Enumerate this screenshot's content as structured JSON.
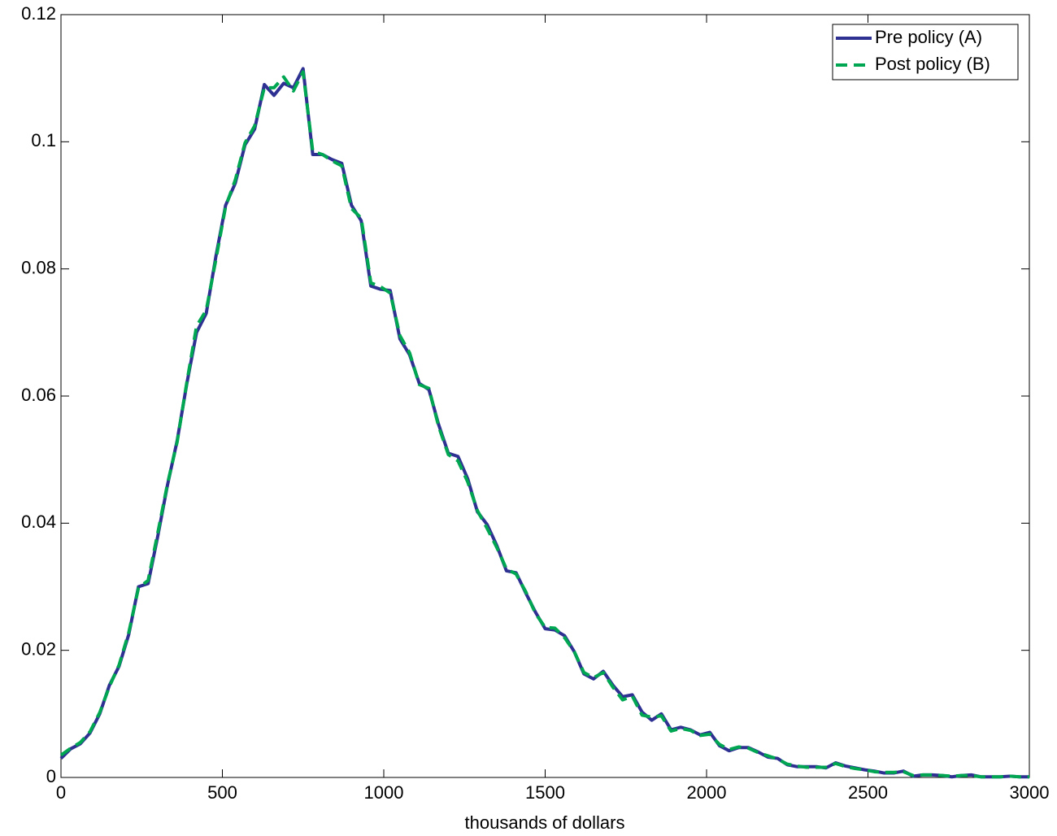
{
  "chart_data": {
    "type": "line",
    "xlabel": "thousands of dollars",
    "x": [
      0,
      30,
      60,
      90,
      120,
      150,
      180,
      210,
      240,
      270,
      300,
      330,
      360,
      390,
      420,
      450,
      480,
      510,
      540,
      570,
      600,
      630,
      660,
      690,
      720,
      750,
      780,
      810,
      840,
      870,
      900,
      930,
      960,
      990,
      1020,
      1050,
      1080,
      1110,
      1140,
      1170,
      1200,
      1230,
      1260,
      1290,
      1320,
      1350,
      1380,
      1410,
      1440,
      1470,
      1500,
      1530,
      1560,
      1590,
      1620,
      1650,
      1680,
      1710,
      1740,
      1770,
      1800,
      1830,
      1860,
      1890,
      1920,
      1950,
      1980,
      2010,
      2040,
      2070,
      2100,
      2130,
      2160,
      2190,
      2220,
      2250,
      2280,
      2310,
      2340,
      2370,
      2400,
      2430,
      2460,
      2490,
      2520,
      2550,
      2580,
      2610,
      2640,
      2670,
      2700,
      2730,
      2760,
      2790,
      2820,
      2850,
      2880,
      2910,
      2940,
      2970,
      3000
    ],
    "series": [
      {
        "name": "Pre policy (A)",
        "color": "#2e3192",
        "dash": "solid",
        "values": [
          0.003,
          0.0045,
          0.0053,
          0.007,
          0.01,
          0.0145,
          0.0175,
          0.0225,
          0.03,
          0.0305,
          0.038,
          0.046,
          0.053,
          0.062,
          0.07,
          0.073,
          0.082,
          0.09,
          0.0935,
          0.0995,
          0.102,
          0.109,
          0.1073,
          0.1092,
          0.1085,
          0.1115,
          0.098,
          0.098,
          0.0972,
          0.0966,
          0.09,
          0.0876,
          0.0773,
          0.0768,
          0.0766,
          0.069,
          0.0665,
          0.062,
          0.061,
          0.0555,
          0.051,
          0.0505,
          0.047,
          0.0418,
          0.0398,
          0.0365,
          0.0325,
          0.0322,
          0.029,
          0.026,
          0.0234,
          0.0232,
          0.0223,
          0.0198,
          0.0163,
          0.0155,
          0.0167,
          0.0145,
          0.0127,
          0.013,
          0.0103,
          0.009,
          0.01,
          0.0075,
          0.0079,
          0.0075,
          0.0067,
          0.0071,
          0.005,
          0.0042,
          0.0047,
          0.0047,
          0.004,
          0.0032,
          0.003,
          0.002,
          0.0017,
          0.0017,
          0.0017,
          0.0015,
          0.0023,
          0.0018,
          0.0015,
          0.0012,
          0.001,
          0.0007,
          0.0007,
          0.001,
          0.0002,
          0.0004,
          0.0004,
          0.0003,
          0.0001,
          0.0003,
          0.0004,
          0.0001,
          0.0001,
          0.0001,
          0.0002,
          0.0001,
          0.0001
        ]
      },
      {
        "name": "Post policy (B)",
        "color": "#00a651",
        "dash": "dashed",
        "values": [
          0.0035,
          0.0046,
          0.0055,
          0.0072,
          0.0102,
          0.0143,
          0.0177,
          0.0228,
          0.0298,
          0.031,
          0.0385,
          0.0462,
          0.0528,
          0.0622,
          0.071,
          0.0735,
          0.0815,
          0.0898,
          0.094,
          0.0998,
          0.1025,
          0.1085,
          0.1085,
          0.1102,
          0.108,
          0.111,
          0.0985,
          0.098,
          0.097,
          0.0962,
          0.0895,
          0.088,
          0.0778,
          0.0772,
          0.0762,
          0.0695,
          0.0668,
          0.0618,
          0.0612,
          0.0552,
          0.0508,
          0.0498,
          0.0465,
          0.042,
          0.0392,
          0.0362,
          0.0328,
          0.032,
          0.0292,
          0.0258,
          0.0236,
          0.0235,
          0.022,
          0.0198,
          0.0165,
          0.0157,
          0.0165,
          0.0142,
          0.0122,
          0.0128,
          0.0098,
          0.0095,
          0.0097,
          0.0073,
          0.0077,
          0.0074,
          0.0066,
          0.0068,
          0.0052,
          0.0044,
          0.0048,
          0.0046,
          0.0039,
          0.0034,
          0.0029,
          0.0021,
          0.0018,
          0.0016,
          0.0016,
          0.0016,
          0.0022,
          0.0017,
          0.0014,
          0.0012,
          0.0009,
          0.0008,
          0.0008,
          0.0009,
          0.0003,
          0.0004,
          0.0004,
          0.0003,
          0.0002,
          0.0003,
          0.0003,
          0.0001,
          0.0001,
          0.0001,
          0.0002,
          0.0001,
          0.0001
        ]
      }
    ],
    "xlim": [
      0,
      3000
    ],
    "xticks": [
      0,
      500,
      1000,
      1500,
      2000,
      2500,
      3000
    ],
    "ylim": [
      0,
      0.12
    ],
    "yticks": [
      0,
      0.02,
      0.04,
      0.06,
      0.08,
      0.1,
      0.12
    ],
    "grid": false,
    "legend": "upper right"
  }
}
